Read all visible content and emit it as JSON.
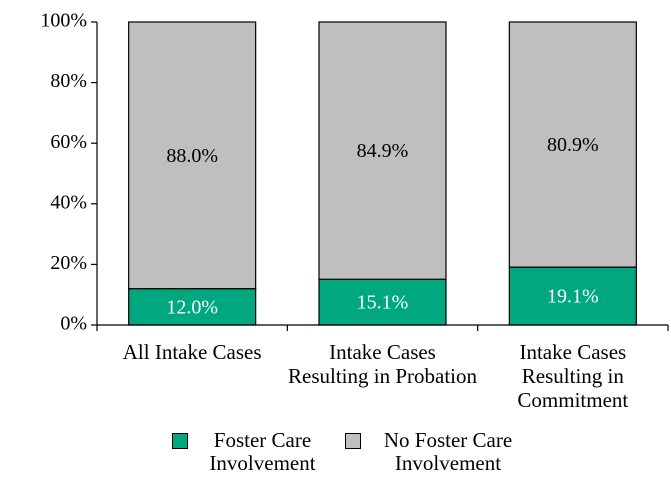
{
  "chart_data": {
    "type": "stacked_bar",
    "categories": [
      "All Intake Cases",
      "Intake Cases Resulting in Probation",
      "Intake Cases Resulting in Commitment"
    ],
    "series": [
      {
        "name": "Foster Care Involvement",
        "color": "#00a77f",
        "values": [
          12.0,
          15.1,
          19.1
        ],
        "value_labels": [
          "12.0%",
          "15.1%",
          "19.1%"
        ]
      },
      {
        "name": "No Foster Care Involvement",
        "color": "#bfbfbf",
        "values": [
          88.0,
          84.9,
          80.9
        ],
        "value_labels": [
          "88.0%",
          "84.9%",
          "80.9%"
        ]
      }
    ],
    "ylim": [
      0,
      100
    ],
    "yticks": [
      {
        "value": 0,
        "label": "0%"
      },
      {
        "value": 20,
        "label": "20%"
      },
      {
        "value": 40,
        "label": "40%"
      },
      {
        "value": 60,
        "label": "60%"
      },
      {
        "value": 80,
        "label": "80%"
      },
      {
        "value": 100,
        "label": "100%"
      }
    ],
    "legend": "bottom"
  }
}
